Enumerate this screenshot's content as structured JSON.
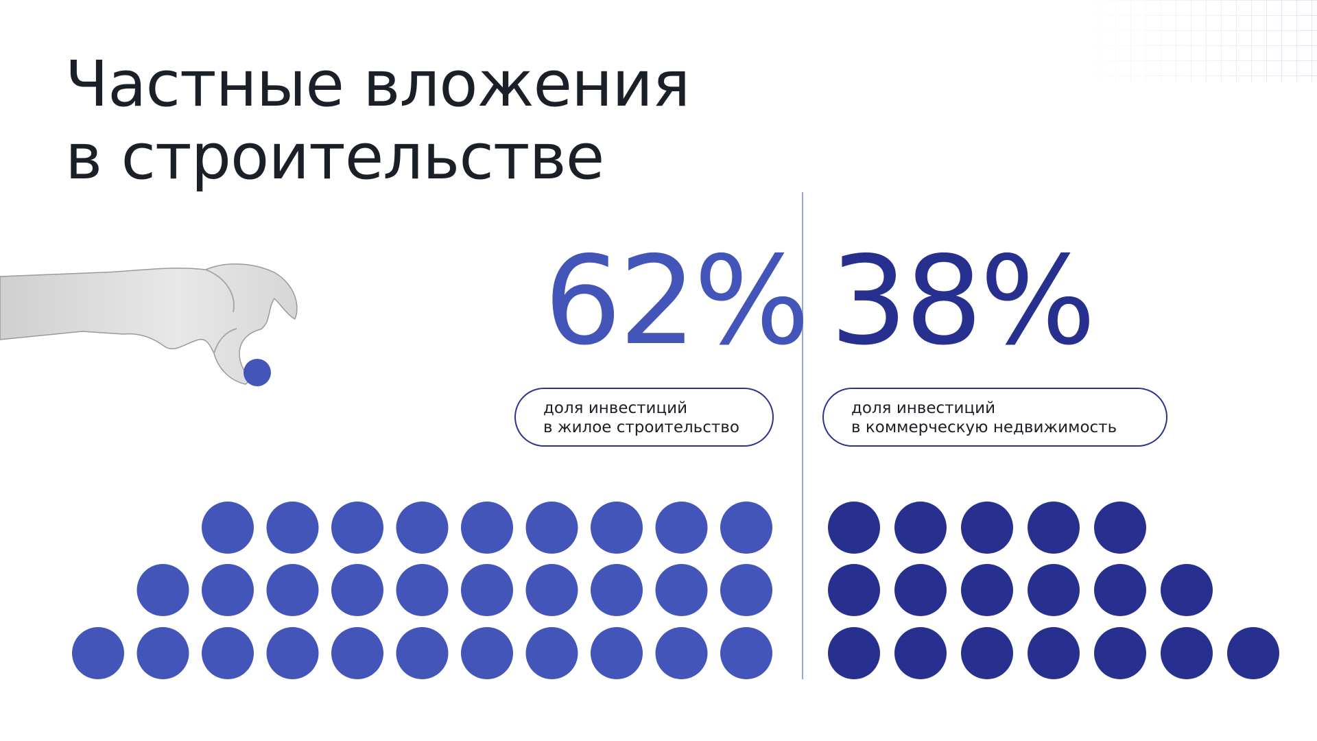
{
  "title": {
    "line1": "Частные вложения",
    "line2": "в строительстве"
  },
  "colors": {
    "residential": "#4355b9",
    "commercial": "#28308f",
    "text": "#1b1f27"
  },
  "chart_data": [
    {
      "type": "dot-matrix",
      "value": 62,
      "value_label": "62%",
      "caption": [
        "доля инвестиций",
        "в жилое строительство"
      ],
      "rows": [
        9,
        10,
        11
      ],
      "row_alignment": "right",
      "dot_count": 30,
      "color": "#4355b9"
    },
    {
      "type": "dot-matrix",
      "value": 38,
      "value_label": "38%",
      "caption": [
        "доля инвестиций",
        "в коммерческую недвижимость"
      ],
      "rows": [
        5,
        6,
        7
      ],
      "row_alignment": "left",
      "dot_count": 18,
      "color": "#28308f"
    }
  ]
}
